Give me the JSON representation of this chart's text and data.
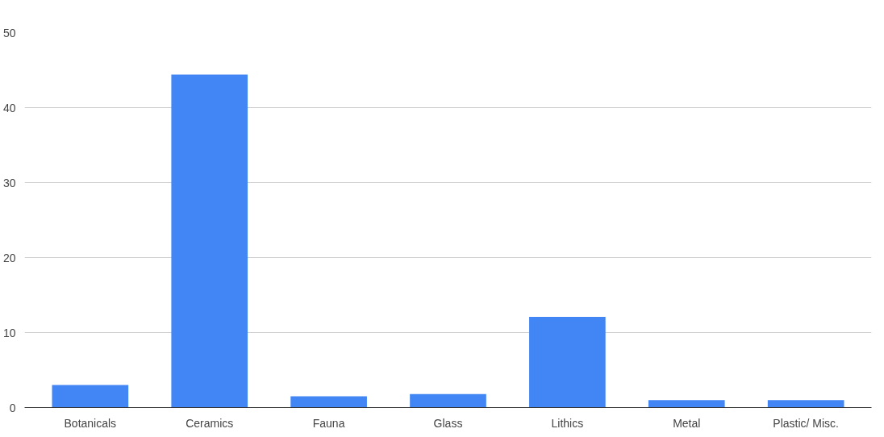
{
  "chart_data": {
    "type": "bar",
    "categories": [
      "Botanicals",
      "Ceramics",
      "Fauna",
      "Glass",
      "Lithics",
      "Metal",
      "Plastic/ Misc."
    ],
    "values": [
      3,
      44.4,
      1.5,
      1.8,
      12.1,
      1,
      1
    ],
    "color": "#4285f4",
    "ylim": [
      0,
      50
    ],
    "yticks": [
      0,
      10,
      20,
      30,
      40,
      50
    ],
    "grid": "y"
  }
}
